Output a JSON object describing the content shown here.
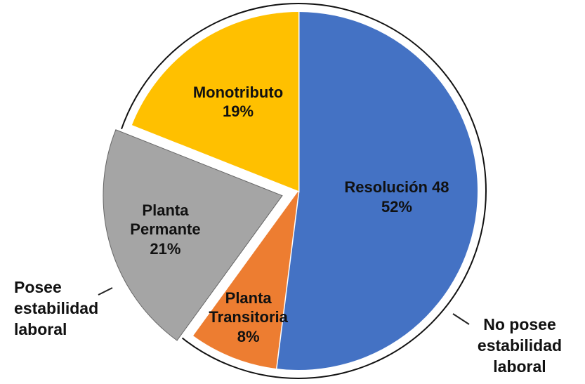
{
  "chart_data": {
    "type": "pie",
    "categories": [
      "Resolución 48",
      "Planta Transitoria",
      "Planta Permante",
      "Monotributo"
    ],
    "values": [
      52,
      8,
      21,
      19
    ],
    "value_labels": [
      "52%",
      "8%",
      "21%",
      "19%"
    ],
    "colors": [
      "#4472c4",
      "#ed7d31",
      "#a5a5a5",
      "#ffc000"
    ],
    "annotations": [
      "Posee estabilidad laboral",
      "No posee estabilidad laboral"
    ]
  }
}
